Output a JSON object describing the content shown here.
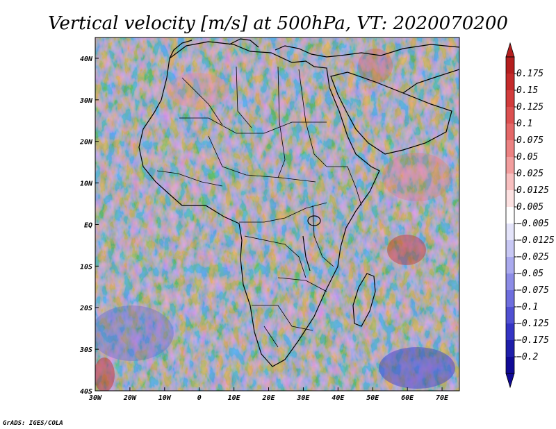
{
  "title": "Vertical velocity [m/s] at 500hPa, VT: 2020070200",
  "credit": "GrADS: IGES/COLA",
  "map": {
    "lon_range": [
      -30,
      75
    ],
    "lat_range": [
      -40,
      45
    ],
    "lon_ticks": [
      {
        "value": -30,
        "label": "30W"
      },
      {
        "value": -20,
        "label": "20W"
      },
      {
        "value": -10,
        "label": "10W"
      },
      {
        "value": 0,
        "label": "0"
      },
      {
        "value": 10,
        "label": "10E"
      },
      {
        "value": 20,
        "label": "20E"
      },
      {
        "value": 30,
        "label": "30E"
      },
      {
        "value": 40,
        "label": "40E"
      },
      {
        "value": 50,
        "label": "50E"
      },
      {
        "value": 60,
        "label": "60E"
      },
      {
        "value": 70,
        "label": "70E"
      }
    ],
    "lat_ticks": [
      {
        "value": 40,
        "label": "40N"
      },
      {
        "value": 30,
        "label": "30N"
      },
      {
        "value": 20,
        "label": "20N"
      },
      {
        "value": 10,
        "label": "10N"
      },
      {
        "value": 0,
        "label": "EQ"
      },
      {
        "value": -10,
        "label": "10S"
      },
      {
        "value": -20,
        "label": "20S"
      },
      {
        "value": -30,
        "label": "30S"
      },
      {
        "value": -40,
        "label": "40S"
      }
    ]
  },
  "colorbar": {
    "labels": [
      "0.175",
      "0.15",
      "0.125",
      "0.1",
      "0.075",
      "0.05",
      "0.025",
      "0.0125",
      "0.005",
      "−0.005",
      "−0.0125",
      "−0.025",
      "−0.05",
      "−0.075",
      "−0.1",
      "−0.125",
      "−0.175",
      "−0.2"
    ],
    "colors": [
      "#b41e1e",
      "#c42a2a",
      "#d23c3c",
      "#dc5050",
      "#e46868",
      "#ec8282",
      "#f29e9e",
      "#f8c0c0",
      "#fde2e2",
      "#ffffff",
      "#e4e4fa",
      "#c8c8f4",
      "#aaaaee",
      "#8c8ce6",
      "#6e6ede",
      "#5050d2",
      "#3434c4",
      "#1e1eaa",
      "#100a96"
    ]
  }
}
